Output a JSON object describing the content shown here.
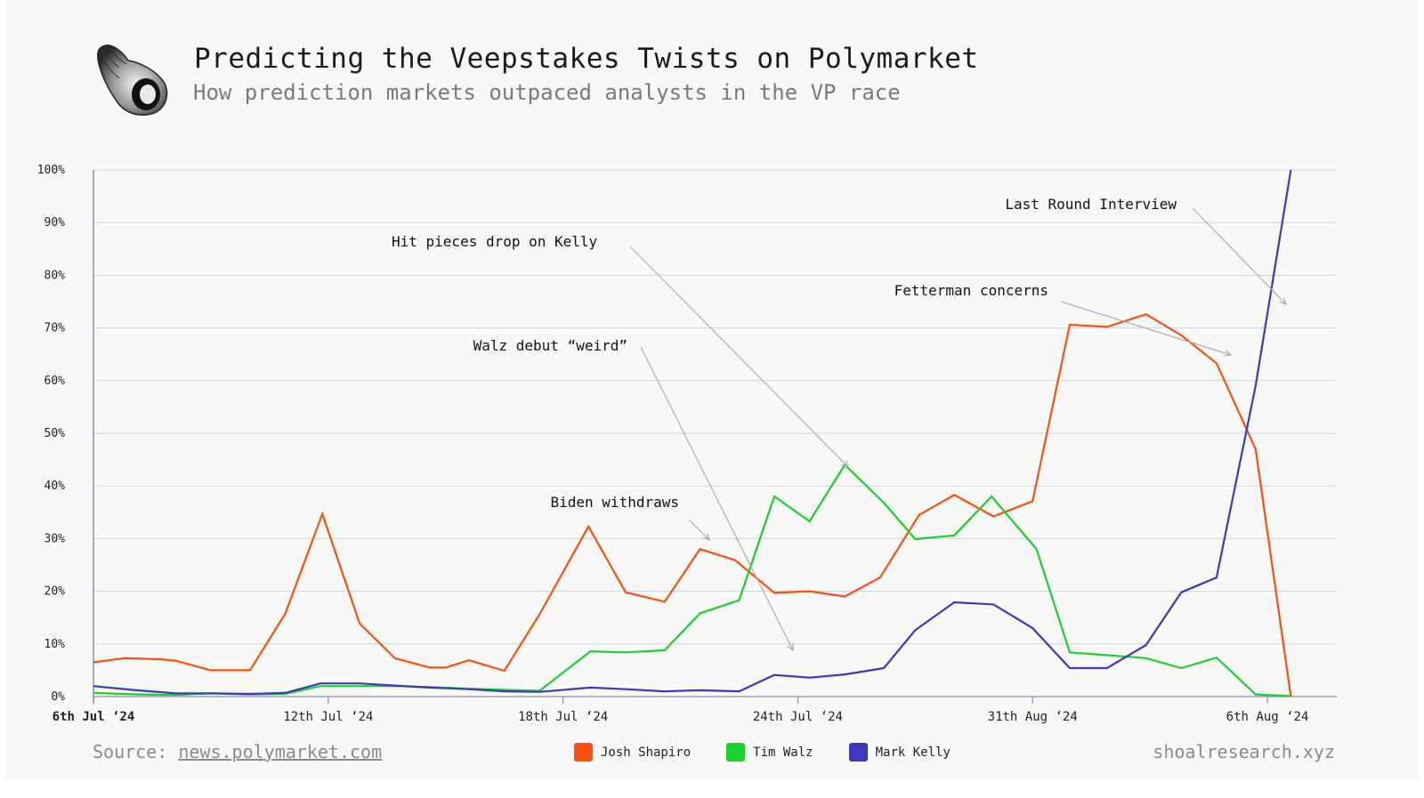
{
  "header": {
    "title": "Predicting the Veepstakes Twists on Polymarket",
    "subtitle": "How prediction markets outpaced analysts in the VP race"
  },
  "footer": {
    "source_label": "Source:",
    "source_link": "news.polymarket.com",
    "credit": "shoalresearch.xyz"
  },
  "chart_data": {
    "type": "line",
    "title": "Predicting the Veepstakes Twists on Polymarket",
    "subtitle": "How prediction markets outpaced analysts in the VP race",
    "xlabel": "",
    "ylabel": "",
    "ylim": [
      0,
      100
    ],
    "xlim": [
      0,
      31
    ],
    "yticks": [
      "0%",
      "10%",
      "20%",
      "30%",
      "40%",
      "50%",
      "60%",
      "70%",
      "80%",
      "90%",
      "100%"
    ],
    "xticks": [
      {
        "x": 0,
        "label": "6th Jul ‘24",
        "bold": true
      },
      {
        "x": 6,
        "label": "12th Jul ‘24"
      },
      {
        "x": 12,
        "label": "18th Jul ‘24"
      },
      {
        "x": 18,
        "label": "24th Jul ‘24"
      },
      {
        "x": 24,
        "label": "31th Aug ‘24"
      },
      {
        "x": 30,
        "label": "6th Aug ‘24"
      }
    ],
    "grid": true,
    "legend_position": "bottom-center",
    "series": [
      {
        "name": "Josh Shapiro",
        "color": "#fd4f0d",
        "points": [
          [
            0,
            6.5
          ],
          [
            0.8,
            7.3
          ],
          [
            1.7,
            7.1
          ],
          [
            2.1,
            6.8
          ],
          [
            3,
            5
          ],
          [
            4,
            5
          ],
          [
            4.9,
            15.7
          ],
          [
            5.85,
            34.7
          ],
          [
            6.8,
            13.9
          ],
          [
            7.7,
            7.3
          ],
          [
            8.6,
            5.5
          ],
          [
            9,
            5.5
          ],
          [
            9.6,
            6.9
          ],
          [
            10.5,
            4.9
          ],
          [
            11.4,
            15.6
          ],
          [
            12.65,
            32.3
          ],
          [
            13.6,
            19.8
          ],
          [
            14.6,
            18
          ],
          [
            15.5,
            28
          ],
          [
            16.4,
            25.9
          ],
          [
            17.4,
            19.7
          ],
          [
            18.3,
            20
          ],
          [
            19.2,
            19
          ],
          [
            20.1,
            22.6
          ],
          [
            21.1,
            34.5
          ],
          [
            22,
            38.3
          ],
          [
            23,
            34.2
          ],
          [
            24,
            37.1
          ],
          [
            24.95,
            70.6
          ],
          [
            25.9,
            70.2
          ],
          [
            26.9,
            72.6
          ],
          [
            27.8,
            68.6
          ],
          [
            28.7,
            63.3
          ],
          [
            29.7,
            47
          ],
          [
            30.6,
            0
          ]
        ]
      },
      {
        "name": "Tim Walz",
        "color": "#19d22e",
        "points": [
          [
            0,
            0.7
          ],
          [
            1.2,
            0.4
          ],
          [
            2.1,
            0.3
          ],
          [
            3,
            0.6
          ],
          [
            4,
            0.4
          ],
          [
            4.9,
            0.5
          ],
          [
            5.8,
            2
          ],
          [
            6.8,
            2
          ],
          [
            7.7,
            2
          ],
          [
            8.6,
            1.8
          ],
          [
            9.6,
            1.5
          ],
          [
            10.5,
            1.3
          ],
          [
            11.4,
            1.1
          ],
          [
            12.7,
            8.6
          ],
          [
            13.6,
            8.4
          ],
          [
            14.6,
            8.8
          ],
          [
            15.5,
            15.8
          ],
          [
            16.5,
            18.3
          ],
          [
            17.4,
            38
          ],
          [
            18.3,
            33.3
          ],
          [
            19.2,
            44
          ],
          [
            20.2,
            36.8
          ],
          [
            21,
            29.9
          ],
          [
            22,
            30.6
          ],
          [
            22.95,
            38
          ],
          [
            24.1,
            28
          ],
          [
            24.95,
            8.4
          ],
          [
            26.9,
            7.3
          ],
          [
            27.8,
            5.4
          ],
          [
            28.7,
            7.4
          ],
          [
            29.7,
            0.4
          ],
          [
            30.6,
            0.1
          ]
        ]
      },
      {
        "name": "Mark Kelly",
        "color": "#3d38bd",
        "points": [
          [
            0,
            2
          ],
          [
            1.1,
            1.2
          ],
          [
            2.1,
            0.6
          ],
          [
            3,
            0.6
          ],
          [
            4,
            0.5
          ],
          [
            4.9,
            0.7
          ],
          [
            5.8,
            2.5
          ],
          [
            6.8,
            2.5
          ],
          [
            7.7,
            2.1
          ],
          [
            8.6,
            1.7
          ],
          [
            9.6,
            1.4
          ],
          [
            10.5,
            1
          ],
          [
            11.4,
            0.9
          ],
          [
            12.7,
            1.7
          ],
          [
            13.6,
            1.4
          ],
          [
            14.6,
            1
          ],
          [
            15.5,
            1.2
          ],
          [
            16.5,
            1
          ],
          [
            17.4,
            4.1
          ],
          [
            18.3,
            3.6
          ],
          [
            19.2,
            4.2
          ],
          [
            20.2,
            5.4
          ],
          [
            21,
            12.6
          ],
          [
            22,
            17.9
          ],
          [
            23,
            17.5
          ],
          [
            24,
            13
          ],
          [
            24.95,
            5.4
          ],
          [
            25.9,
            5.4
          ],
          [
            26.9,
            9.8
          ],
          [
            27.8,
            19.8
          ],
          [
            28.7,
            22.6
          ],
          [
            29.7,
            59
          ],
          [
            30.6,
            100
          ]
        ]
      }
    ],
    "annotations": [
      {
        "text": "Hit pieces drop on Kelly"
      },
      {
        "text": "Walz debut “weird”"
      },
      {
        "text": "Biden withdraws"
      },
      {
        "text": "Fetterman concerns"
      },
      {
        "text": "Last Round Interview"
      }
    ]
  }
}
